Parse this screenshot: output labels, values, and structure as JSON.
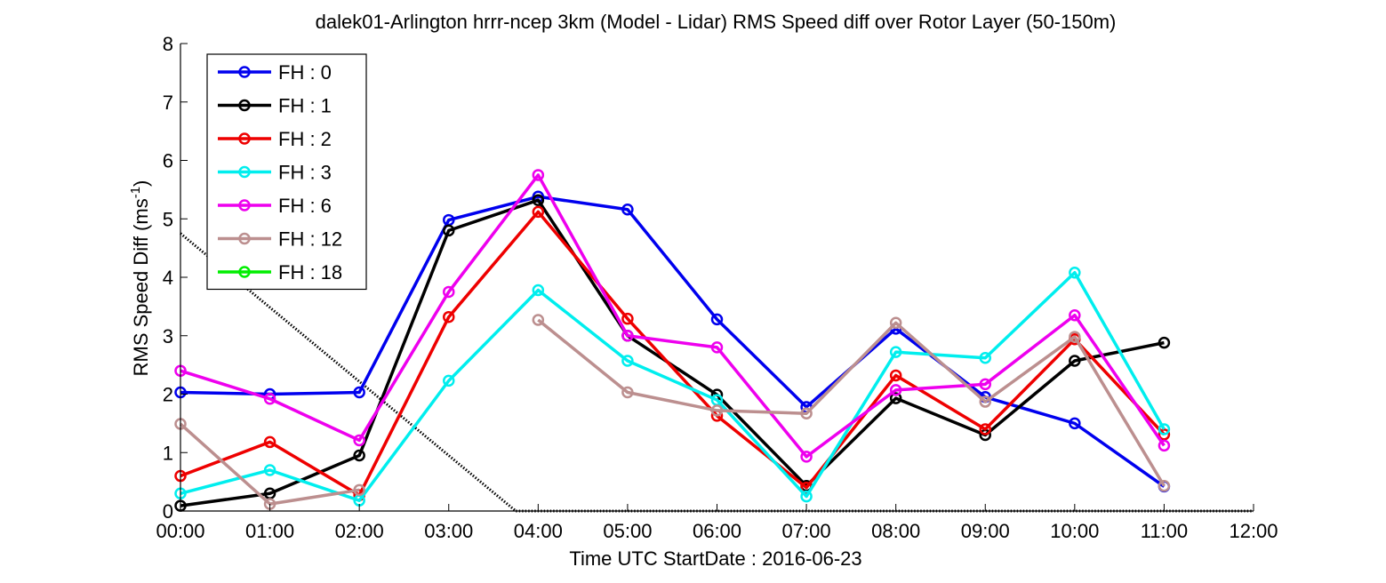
{
  "chart_data": {
    "type": "line",
    "title": "dalek01-Arlington hrrr-ncep 3km (Model - Lidar) RMS Speed diff over Rotor Layer (50-150m)",
    "xlabel": "Time UTC    StartDate : 2016-06-23",
    "ylabel_main": "RMS Speed Diff (ms",
    "ylabel_sup": "-1",
    "ylabel_tail": ")",
    "x_ticks": [
      "00:00",
      "01:00",
      "02:00",
      "03:00",
      "04:00",
      "05:00",
      "06:00",
      "07:00",
      "08:00",
      "09:00",
      "10:00",
      "11:00",
      "12:00"
    ],
    "y_ticks": [
      "0",
      "1",
      "2",
      "3",
      "4",
      "5",
      "6",
      "7",
      "8"
    ],
    "xlim": [
      0,
      12
    ],
    "ylim": [
      0,
      8
    ],
    "grid": false,
    "legend_position": "top-left",
    "series": [
      {
        "name": "FH : 0",
        "color": "#0000ee",
        "x": [
          0,
          1,
          2,
          3,
          4,
          5,
          6,
          7,
          8,
          9,
          10,
          11
        ],
        "y": [
          2.03,
          2.0,
          2.03,
          4.98,
          5.38,
          5.16,
          3.28,
          1.78,
          3.12,
          1.95,
          1.5,
          0.42
        ]
      },
      {
        "name": "FH : 1",
        "color": "#000000",
        "x": [
          0,
          1,
          2,
          3,
          4,
          5,
          6,
          7,
          8,
          9,
          10,
          11
        ],
        "y": [
          0.09,
          0.3,
          0.95,
          4.8,
          5.32,
          3.0,
          1.99,
          0.43,
          1.93,
          1.3,
          2.57,
          2.88
        ]
      },
      {
        "name": "FH : 2",
        "color": "#ee0000",
        "x": [
          0,
          1,
          2,
          3,
          4,
          5,
          6,
          7,
          8,
          9,
          10,
          11
        ],
        "y": [
          0.6,
          1.18,
          0.27,
          3.32,
          5.12,
          3.29,
          1.63,
          0.4,
          2.32,
          1.4,
          2.94,
          1.31
        ]
      },
      {
        "name": "FH : 3",
        "color": "#00eeee",
        "x": [
          0,
          1,
          2,
          3,
          4,
          5,
          6,
          7,
          8,
          9,
          10,
          11
        ],
        "y": [
          0.3,
          0.7,
          0.18,
          2.23,
          3.78,
          2.57,
          1.9,
          0.25,
          2.72,
          2.62,
          4.08,
          1.4
        ]
      },
      {
        "name": "FH : 6",
        "color": "#ee00ee",
        "x": [
          0,
          1,
          2,
          3,
          4,
          5,
          6,
          7,
          8,
          9,
          10,
          11
        ],
        "y": [
          2.4,
          1.92,
          1.21,
          3.75,
          5.75,
          3.0,
          2.8,
          0.93,
          2.07,
          2.17,
          3.35,
          1.12
        ]
      },
      {
        "name": "FH : 12",
        "color": "#bc8f8f",
        "x": [
          0,
          1,
          2,
          3,
          4,
          5,
          6,
          7,
          8,
          9,
          10,
          11
        ],
        "y": [
          1.49,
          0.12,
          0.36,
          null,
          3.27,
          2.03,
          1.72,
          1.67,
          3.22,
          1.87,
          2.98,
          0.43
        ]
      },
      {
        "name": "FH : 18",
        "color": "#00ee00",
        "x": [],
        "y": []
      }
    ],
    "reference_lines": [
      {
        "color": "#000000",
        "style": "dotted",
        "x": [
          0,
          3.75
        ],
        "y": [
          4.75,
          0
        ]
      },
      {
        "color": "#000000",
        "style": "dotted",
        "x": [
          3.75,
          12
        ],
        "y": [
          0,
          0
        ]
      }
    ]
  }
}
